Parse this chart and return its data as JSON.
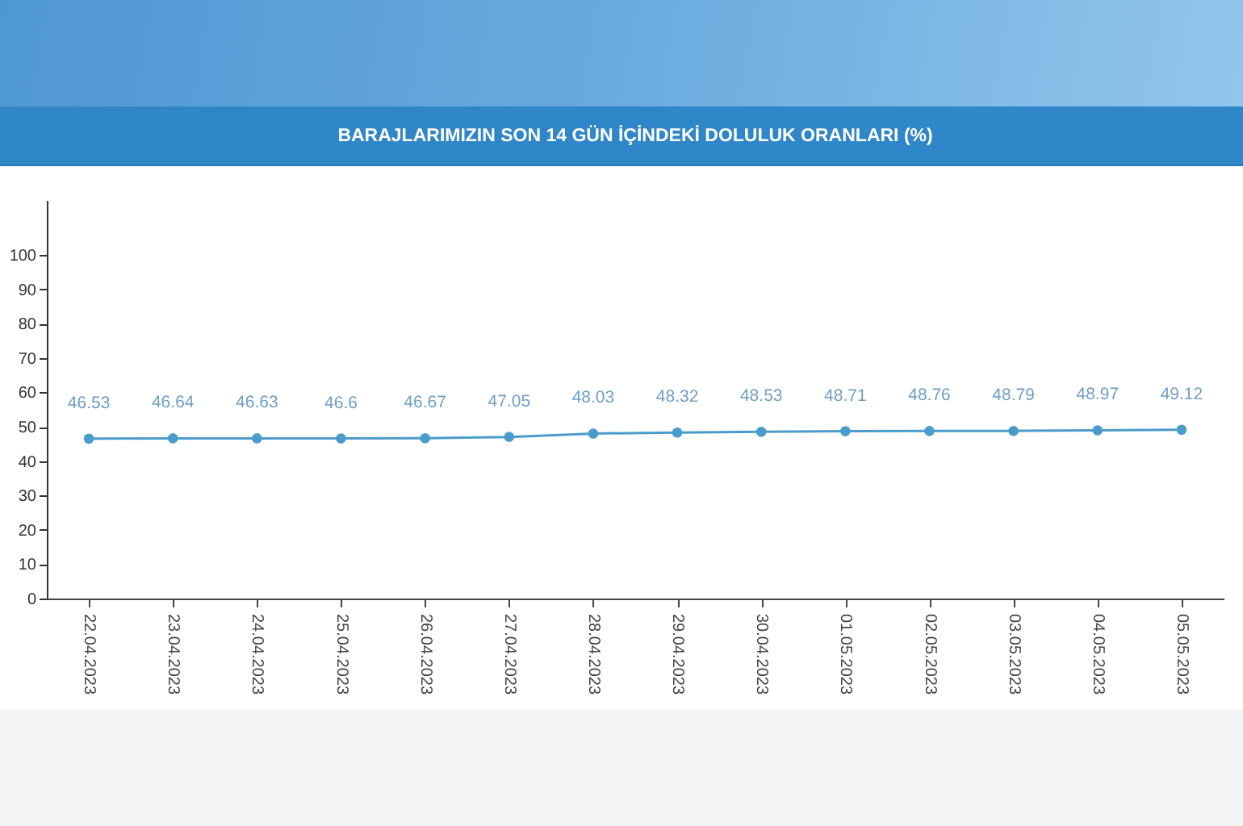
{
  "chart_data": {
    "type": "line",
    "title": "BARAJLARIMIZIN SON 14 GÜN İÇİNDEKİ DOLULUK ORANLARI (%)",
    "categories": [
      "22.04.2023",
      "23.04.2023",
      "24.04.2023",
      "25.04.2023",
      "26.04.2023",
      "27.04.2023",
      "28.04.2023",
      "29.04.2023",
      "30.04.2023",
      "01.05.2023",
      "02.05.2023",
      "03.05.2023",
      "04.05.2023",
      "05.05.2023"
    ],
    "values": [
      46.53,
      46.64,
      46.63,
      46.6,
      46.67,
      47.05,
      48.03,
      48.32,
      48.53,
      48.71,
      48.76,
      48.79,
      48.97,
      49.12
    ],
    "color": "#4a9ccb",
    "marker": "circle",
    "data_labels": true,
    "grid": false,
    "ylim": [
      0,
      116
    ],
    "yticks": [
      0,
      10,
      20,
      30,
      40,
      50,
      60,
      70,
      80,
      90,
      100
    ]
  }
}
